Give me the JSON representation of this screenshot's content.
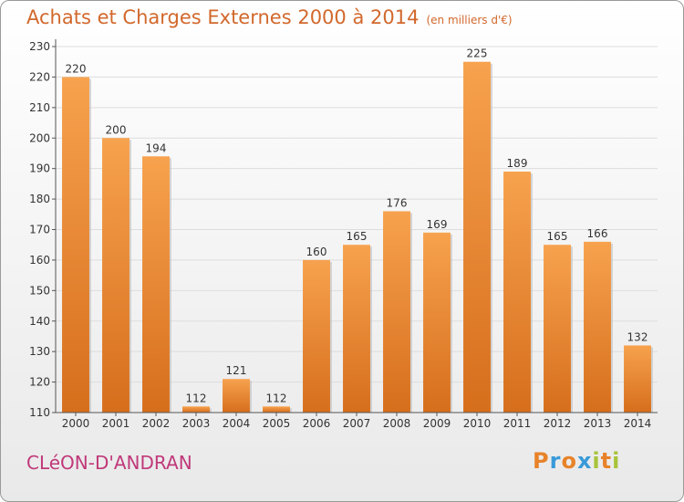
{
  "header": {
    "title": "Achats et Charges Externes 2000 à 2014",
    "subtitle": "(en milliers d'€)"
  },
  "footer": {
    "commune": "CLéON-D'ANDRAN",
    "logo_letters": [
      "P",
      "r",
      "o",
      "x",
      "i",
      "t",
      "i"
    ],
    "logo_colors": [
      "#e8832a",
      "#3a9ad9",
      "#e8832a",
      "#3a9ad9",
      "#a8c43a",
      "#e8832a",
      "#a8c43a"
    ]
  },
  "colors": {
    "bar_top": "#f7a24e",
    "bar_bottom": "#d66e1c",
    "title": "#d2682c",
    "commune": "#c0397a",
    "grid": "#dddddd"
  },
  "chart_data": {
    "type": "bar",
    "title": "Achats et Charges Externes 2000 à 2014",
    "subtitle": "(en milliers d'€)",
    "xlabel": "",
    "ylabel": "",
    "categories": [
      "2000",
      "2001",
      "2002",
      "2003",
      "2004",
      "2005",
      "2006",
      "2007",
      "2008",
      "2009",
      "2010",
      "2011",
      "2012",
      "2013",
      "2014"
    ],
    "values": [
      220,
      200,
      194,
      112,
      121,
      112,
      160,
      165,
      176,
      169,
      225,
      189,
      165,
      166,
      132
    ],
    "ylim": [
      110,
      230
    ],
    "yticks": [
      110,
      120,
      130,
      140,
      150,
      160,
      170,
      180,
      190,
      200,
      210,
      220,
      230
    ],
    "grid": true,
    "legend": "none"
  }
}
